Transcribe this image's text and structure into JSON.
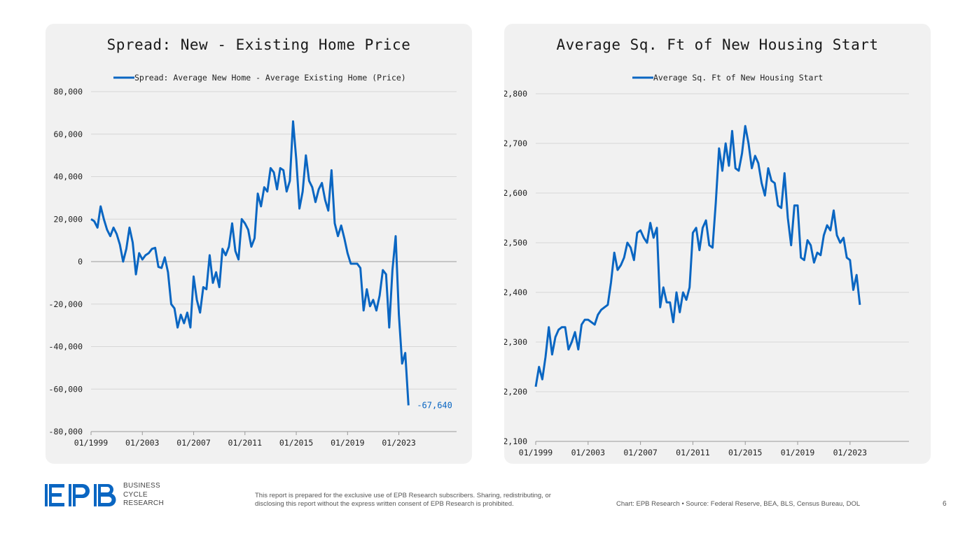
{
  "footer": {
    "logo_text": "EPB",
    "brand_lines": [
      "BUSINESS",
      "CYCLE",
      "RESEARCH"
    ],
    "disclaimer_line1": "This report is prepared for the exclusive use of EPB Research subscribers. Sharing, redistributing, or",
    "disclaimer_line2": "disclosing this report without the express written consent of EPB Research is prohibited.",
    "source": "Chart: EPB Research  •  Source: Federal Reserve, BEA, BLS, Census Bureau, DOL",
    "page_number": "6"
  },
  "colors": {
    "series": "#0a66c2",
    "grid": "#d6d6d6",
    "panel_bg": "#f1f1f1",
    "logo": "#0a66c2"
  },
  "chart_data": [
    {
      "type": "line",
      "title": "Spread: New - Existing Home Price",
      "xlabel": "",
      "ylabel": "",
      "x_tick_labels": [
        "01/1999",
        "01/2003",
        "01/2007",
        "01/2011",
        "01/2015",
        "01/2019",
        "01/2023"
      ],
      "y_tick_values": [
        80000,
        60000,
        40000,
        20000,
        0,
        -20000,
        -40000,
        -60000,
        -80000
      ],
      "y_tick_labels": [
        "80,000",
        "60,000",
        "40,000",
        "20,000",
        "0",
        "-20,000",
        "-40,000",
        "-60,000",
        "-80,000"
      ],
      "ylim": [
        -80000,
        80000
      ],
      "xlim": [
        1999.0,
        2027.5
      ],
      "grid": true,
      "legend": "top-center",
      "end_label": "-67,640",
      "series": [
        {
          "name": "Spread: Average New Home - Average Existing Home (Price)",
          "x": [
            1999.0,
            1999.25,
            1999.5,
            1999.75,
            2000.0,
            2000.25,
            2000.5,
            2000.75,
            2001.0,
            2001.25,
            2001.5,
            2001.75,
            2002.0,
            2002.25,
            2002.5,
            2002.75,
            2003.0,
            2003.25,
            2003.5,
            2003.75,
            2004.0,
            2004.25,
            2004.5,
            2004.75,
            2005.0,
            2005.25,
            2005.5,
            2005.75,
            2006.0,
            2006.25,
            2006.5,
            2006.75,
            2007.0,
            2007.25,
            2007.5,
            2007.75,
            2008.0,
            2008.25,
            2008.5,
            2008.75,
            2009.0,
            2009.25,
            2009.5,
            2009.75,
            2010.0,
            2010.25,
            2010.5,
            2010.75,
            2011.0,
            2011.25,
            2011.5,
            2011.75,
            2012.0,
            2012.25,
            2012.5,
            2012.75,
            2013.0,
            2013.25,
            2013.5,
            2013.75,
            2014.0,
            2014.25,
            2014.5,
            2014.75,
            2015.0,
            2015.25,
            2015.5,
            2015.75,
            2016.0,
            2016.25,
            2016.5,
            2016.75,
            2017.0,
            2017.25,
            2017.5,
            2017.75,
            2018.0,
            2018.25,
            2018.5,
            2018.75,
            2019.0,
            2019.25,
            2019.5,
            2019.75,
            2020.0,
            2020.25,
            2020.5,
            2020.75,
            2021.0,
            2021.25,
            2021.5,
            2021.75,
            2022.0,
            2022.25,
            2022.5,
            2022.75,
            2023.0,
            2023.25,
            2023.5,
            2023.75
          ],
          "values": [
            20000,
            19000,
            16000,
            26000,
            20000,
            15000,
            12000,
            16000,
            13000,
            8000,
            0,
            6000,
            16000,
            9000,
            -6000,
            4000,
            1000,
            3000,
            4000,
            6000,
            6500,
            -2500,
            -3000,
            2000,
            -5000,
            -20000,
            -22000,
            -31000,
            -25000,
            -29000,
            -24000,
            -31000,
            -7000,
            -18000,
            -24000,
            -12000,
            -13000,
            3000,
            -10000,
            -5000,
            -12000,
            6000,
            3000,
            7000,
            18000,
            5000,
            1000,
            20000,
            18000,
            15000,
            7000,
            11000,
            32000,
            26000,
            35000,
            33000,
            44000,
            42000,
            34000,
            44000,
            43000,
            33000,
            38000,
            66000,
            48000,
            25000,
            33000,
            50000,
            38000,
            35000,
            28000,
            34000,
            37000,
            29000,
            24000,
            43000,
            18000,
            12000,
            17000,
            11000,
            4000,
            -1000,
            -1000,
            -1000,
            -3000,
            -23000,
            -13000,
            -21000,
            -18000,
            -23000,
            -16000,
            -4000,
            -6000,
            -31000,
            -4000,
            12000,
            -25000,
            -48000,
            -43000,
            -67640
          ]
        }
      ]
    },
    {
      "type": "line",
      "title": "Average Sq. Ft of New Housing Start",
      "xlabel": "",
      "ylabel": "",
      "x_tick_labels": [
        "01/1999",
        "01/2003",
        "01/2007",
        "01/2011",
        "01/2015",
        "01/2019",
        "01/2023"
      ],
      "y_tick_values": [
        2800,
        2700,
        2600,
        2500,
        2400,
        2300,
        2200,
        2100
      ],
      "y_tick_labels": [
        "2,800",
        "2,700",
        "2,600",
        "2,500",
        "2,400",
        "2,300",
        "2,200",
        "2,100"
      ],
      "ylim": [
        2100,
        2800
      ],
      "xlim": [
        1999.0,
        2027.5
      ],
      "grid": true,
      "legend": "top-center",
      "series": [
        {
          "name": "Average Sq. Ft of New Housing Start",
          "x": [
            1999.0,
            1999.25,
            1999.5,
            1999.75,
            2000.0,
            2000.25,
            2000.5,
            2000.75,
            2001.0,
            2001.25,
            2001.5,
            2001.75,
            2002.0,
            2002.25,
            2002.5,
            2002.75,
            2003.0,
            2003.25,
            2003.5,
            2003.75,
            2004.0,
            2004.25,
            2004.5,
            2004.75,
            2005.0,
            2005.25,
            2005.5,
            2005.75,
            2006.0,
            2006.25,
            2006.5,
            2006.75,
            2007.0,
            2007.25,
            2007.5,
            2007.75,
            2008.0,
            2008.25,
            2008.5,
            2008.75,
            2009.0,
            2009.25,
            2009.5,
            2009.75,
            2010.0,
            2010.25,
            2010.5,
            2010.75,
            2011.0,
            2011.25,
            2011.5,
            2011.75,
            2012.0,
            2012.25,
            2012.5,
            2012.75,
            2013.0,
            2013.25,
            2013.5,
            2013.75,
            2014.0,
            2014.25,
            2014.5,
            2014.75,
            2015.0,
            2015.25,
            2015.5,
            2015.75,
            2016.0,
            2016.25,
            2016.5,
            2016.75,
            2017.0,
            2017.25,
            2017.5,
            2017.75,
            2018.0,
            2018.25,
            2018.5,
            2018.75,
            2019.0,
            2019.25,
            2019.5,
            2019.75,
            2020.0,
            2020.25,
            2020.5,
            2020.75,
            2021.0,
            2021.25,
            2021.5,
            2021.75,
            2022.0,
            2022.25,
            2022.5,
            2022.75,
            2023.0,
            2023.25,
            2023.5,
            2023.75
          ],
          "values": [
            2210,
            2250,
            2225,
            2270,
            2330,
            2275,
            2310,
            2325,
            2330,
            2330,
            2285,
            2300,
            2320,
            2285,
            2335,
            2345,
            2345,
            2340,
            2335,
            2355,
            2365,
            2370,
            2375,
            2420,
            2480,
            2445,
            2455,
            2470,
            2500,
            2490,
            2465,
            2520,
            2525,
            2510,
            2500,
            2540,
            2510,
            2530,
            2370,
            2410,
            2380,
            2380,
            2340,
            2400,
            2360,
            2400,
            2385,
            2410,
            2520,
            2530,
            2485,
            2530,
            2545,
            2495,
            2490,
            2580,
            2690,
            2645,
            2700,
            2655,
            2725,
            2650,
            2645,
            2680,
            2735,
            2700,
            2650,
            2675,
            2660,
            2620,
            2595,
            2650,
            2625,
            2620,
            2575,
            2570,
            2640,
            2550,
            2495,
            2575,
            2575,
            2470,
            2465,
            2505,
            2495,
            2460,
            2480,
            2475,
            2515,
            2535,
            2525,
            2565,
            2515,
            2500,
            2510,
            2470,
            2465,
            2405,
            2435,
            2375
          ]
        }
      ]
    }
  ]
}
